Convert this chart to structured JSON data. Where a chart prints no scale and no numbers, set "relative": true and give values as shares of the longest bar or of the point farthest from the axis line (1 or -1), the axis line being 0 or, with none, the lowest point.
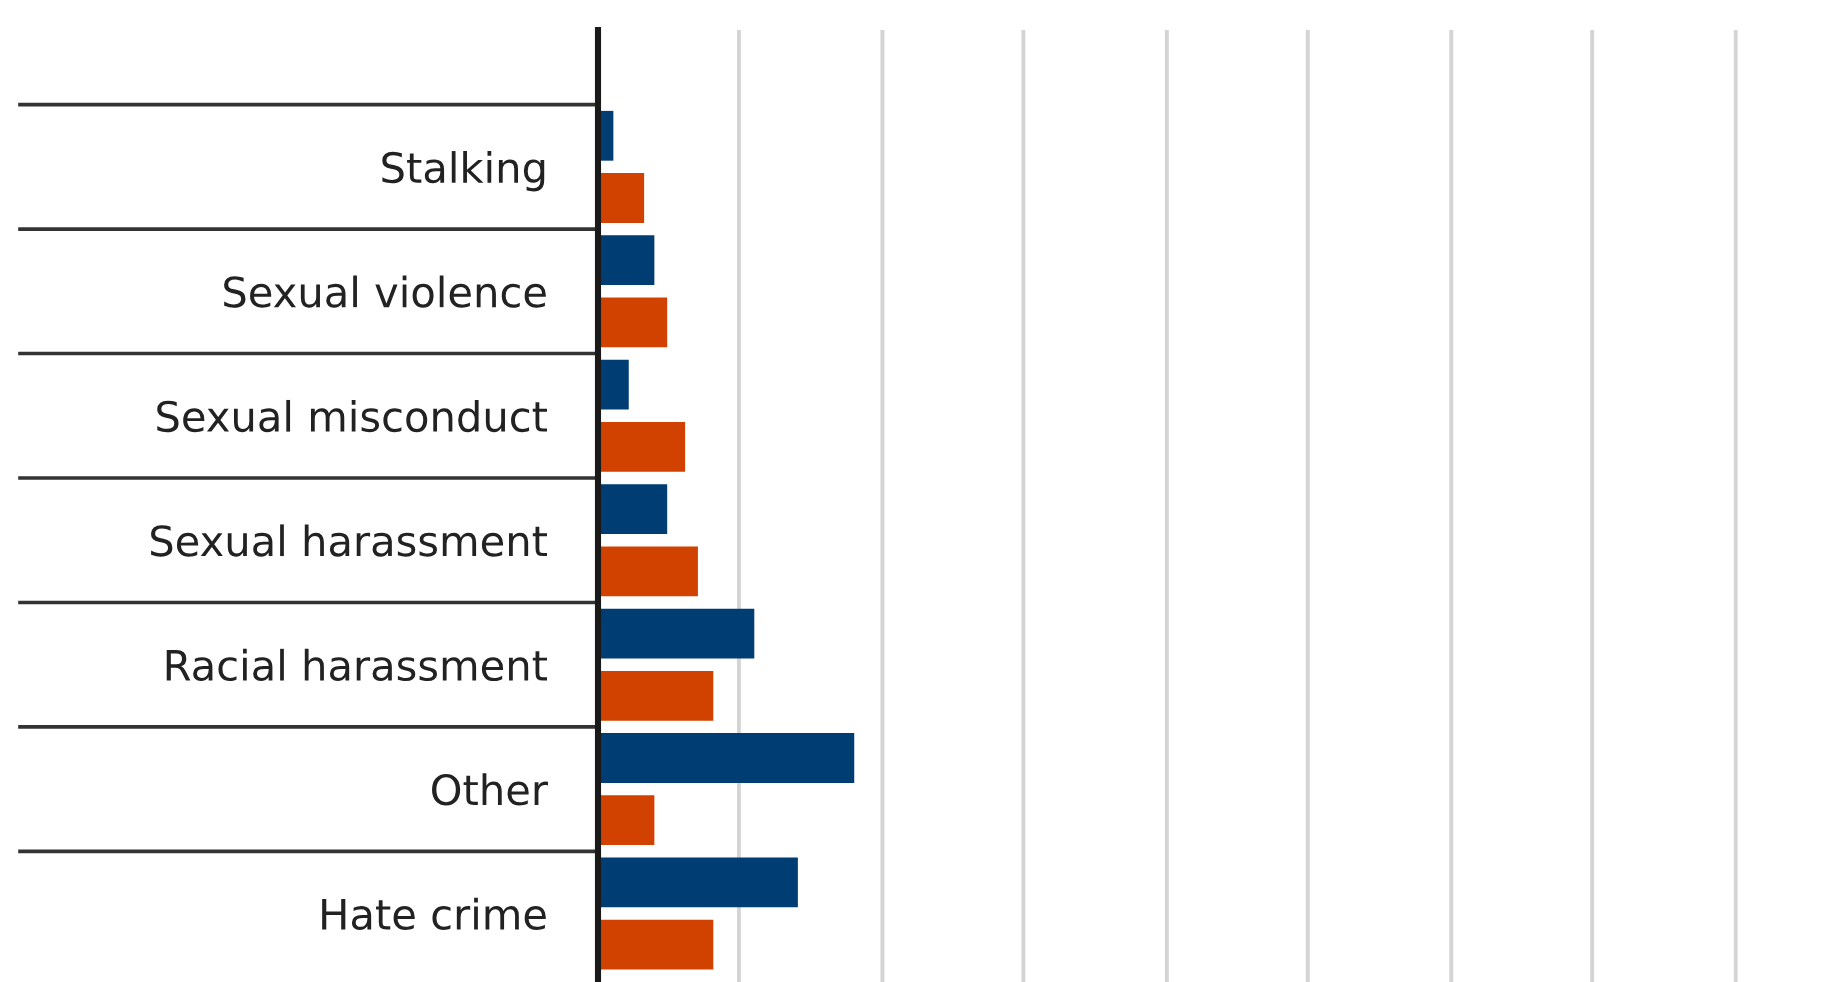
{
  "chart_data": {
    "type": "bar",
    "orientation": "horizontal",
    "relative": true,
    "categories": [
      "Stalking",
      "Sexual violence",
      "Sexual misconduct",
      "Sexual harassment",
      "Racial harassment",
      "Other",
      "Hate crime"
    ],
    "series": [
      {
        "color": "#003d73",
        "values": [
          0.06,
          0.22,
          0.12,
          0.27,
          0.61,
          1,
          0.78
        ]
      },
      {
        "color": "#d14200",
        "values": [
          0.18,
          0.27,
          0.34,
          0.39,
          0.45,
          0.22,
          0.45
        ]
      }
    ],
    "ref_lines": [
      {
        "axis": "x",
        "value": 0.55,
        "color": "#d4d4d4"
      },
      {
        "axis": "x",
        "value": 1.11,
        "color": "#d4d4d4"
      },
      {
        "axis": "x",
        "value": 1.66,
        "color": "#d4d4d4"
      },
      {
        "axis": "x",
        "value": 2.22,
        "color": "#d4d4d4"
      },
      {
        "axis": "x",
        "value": 2.77,
        "color": "#d4d4d4"
      },
      {
        "axis": "x",
        "value": 3.33,
        "color": "#d4d4d4"
      },
      {
        "axis": "x",
        "value": 3.88,
        "color": "#d4d4d4"
      },
      {
        "axis": "x",
        "value": 4.44,
        "color": "#d4d4d4"
      }
    ]
  }
}
